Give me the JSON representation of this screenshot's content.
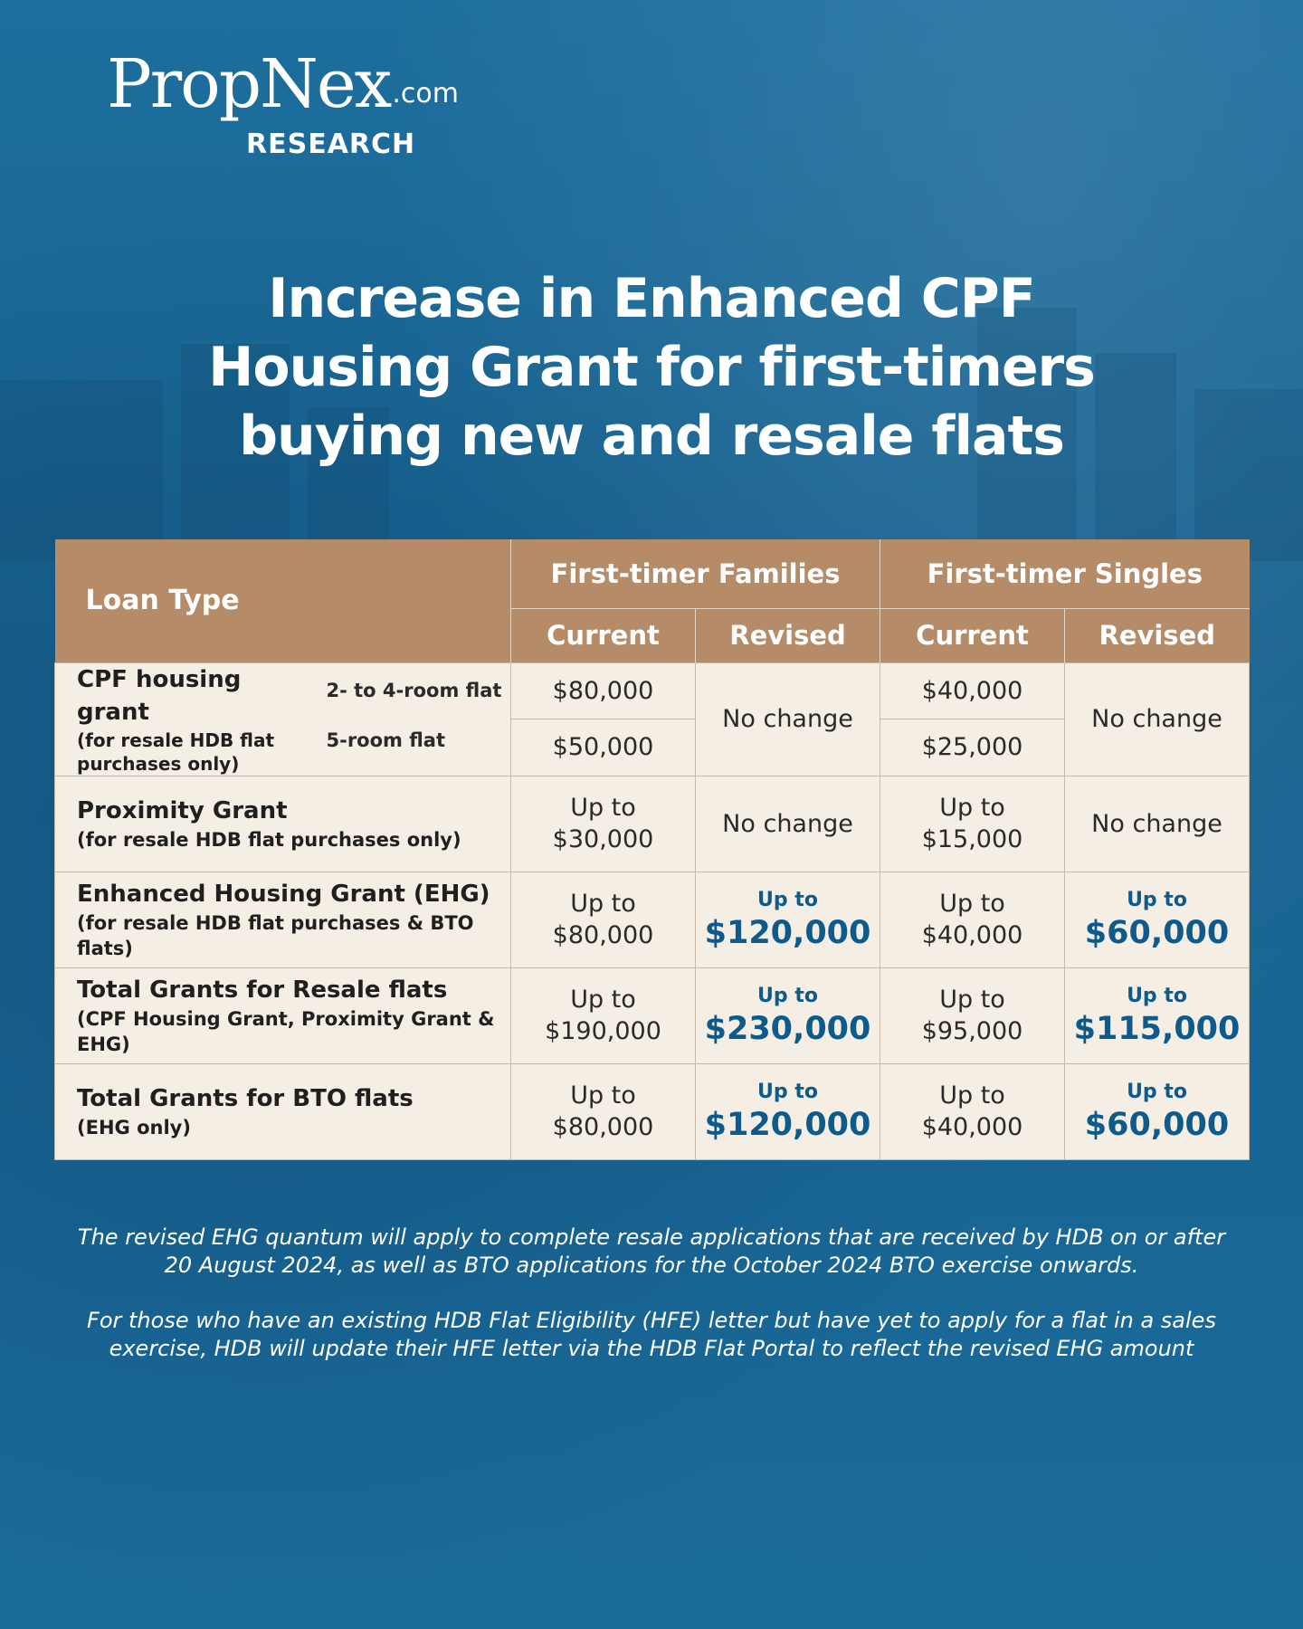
{
  "brand": {
    "name": "PropNex",
    "suffix": ".com",
    "division": "RESEARCH"
  },
  "title_lines": [
    "Increase in Enhanced CPF",
    "Housing Grant for first-timers",
    "buying new and resale flats"
  ],
  "table": {
    "header": {
      "loan_type": "Loan Type",
      "families": "First-timer Families",
      "singles": "First-timer Singles",
      "current": "Current",
      "revised": "Revised"
    },
    "cpf_grant": {
      "label": "CPF housing grant",
      "note": "(for resale HDB flat purchases only)",
      "flat_a": "2- to 4-room flat",
      "flat_b": "5-room flat",
      "fam_current_a": "$80,000",
      "fam_current_b": "$50,000",
      "fam_revised": "No change",
      "sgl_current_a": "$40,000",
      "sgl_current_b": "$25,000",
      "sgl_revised": "No change"
    },
    "rows": [
      {
        "label": "Proximity Grant",
        "note": "(for resale HDB flat purchases only)",
        "fam_current_1": "Up to",
        "fam_current_2": "$30,000",
        "fam_revised_plain": "No change",
        "sgl_current_1": "Up to",
        "sgl_current_2": "$15,000",
        "sgl_revised_plain": "No change"
      },
      {
        "label": "Enhanced Housing Grant (EHG)",
        "note": "(for resale HDB flat purchases & BTO flats)",
        "fam_current_1": "Up to",
        "fam_current_2": "$80,000",
        "fam_revised_up": "Up to",
        "fam_revised_amt": "$120,000",
        "sgl_current_1": "Up to",
        "sgl_current_2": "$40,000",
        "sgl_revised_up": "Up to",
        "sgl_revised_amt": "$60,000"
      },
      {
        "label": "Total Grants for Resale flats",
        "note": "(CPF Housing Grant, Proximity Grant & EHG)",
        "fam_current_1": "Up to",
        "fam_current_2": "$190,000",
        "fam_revised_up": "Up to",
        "fam_revised_amt": "$230,000",
        "sgl_current_1": "Up to",
        "sgl_current_2": "$95,000",
        "sgl_revised_up": "Up to",
        "sgl_revised_amt": "$115,000"
      },
      {
        "label": "Total Grants for BTO flats",
        "note": "(EHG only)",
        "fam_current_1": "Up to",
        "fam_current_2": "$80,000",
        "fam_revised_up": "Up to",
        "fam_revised_amt": "$120,000",
        "sgl_current_1": "Up to",
        "sgl_current_2": "$40,000",
        "sgl_revised_up": "Up to",
        "sgl_revised_amt": "$60,000"
      }
    ]
  },
  "notes": [
    "The revised EHG quantum will apply to complete resale applications that are received by HDB on or after 20 August 2024, as well as BTO applications for the October 2024 BTO exercise onwards.",
    "For those who have an existing HDB Flat Eligibility (HFE) letter but have yet to apply for a flat in a sales exercise, HDB will update their HFE letter via the HDB Flat Portal to reflect the revised EHG amount"
  ],
  "colors": {
    "background": "#1a6a9a",
    "header": "#b58b68",
    "cell": "#f4eee4",
    "accent": "#0d5a8c"
  }
}
